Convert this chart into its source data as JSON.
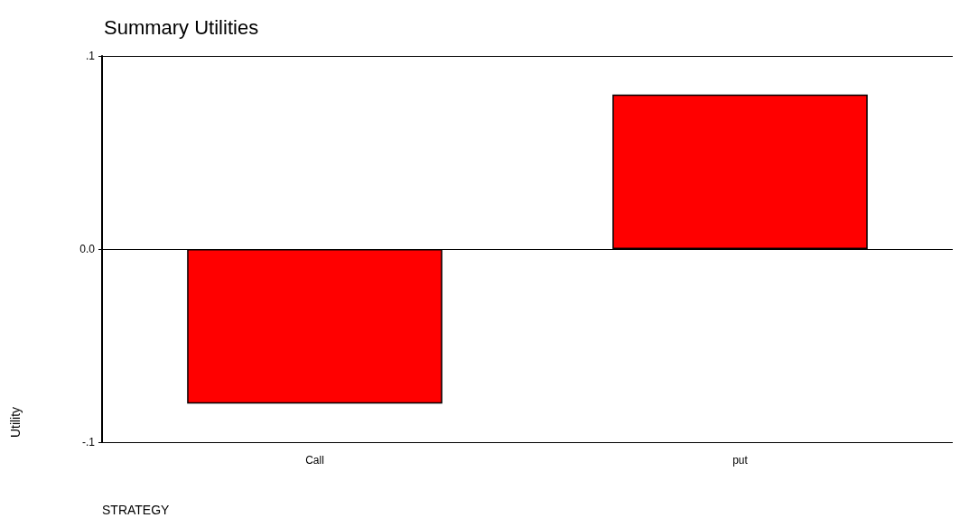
{
  "chart_data": {
    "type": "bar",
    "title": "Summary Utilities",
    "xlabel": "STRATEGY",
    "ylabel": "Utility",
    "categories": [
      "Call",
      "put"
    ],
    "values": [
      -0.08,
      0.08
    ],
    "color": "#ff0000",
    "ylim": [
      -0.1,
      0.1
    ],
    "yticks": [
      {
        "value": -0.1,
        "label": "-.1"
      },
      {
        "value": 0,
        "label": "0.0"
      },
      {
        "value": 0.1,
        "label": ".1"
      }
    ],
    "grid": "y"
  }
}
